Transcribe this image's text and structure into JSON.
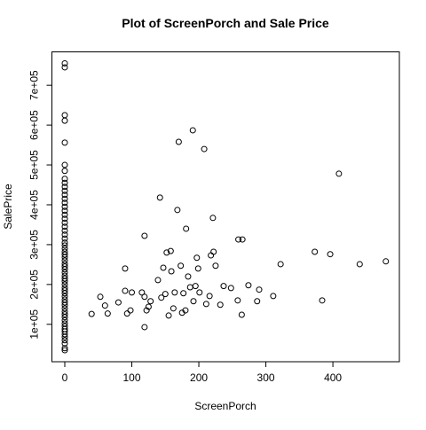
{
  "chart_data": {
    "type": "scatter",
    "title": "Plot of ScreenPorch and Sale Price",
    "x_label": "ScreenPorch",
    "y_label": "SalePrice",
    "xlim": [
      -19.2,
      499.2
    ],
    "ylim": [
      6096,
      783804
    ],
    "xticks": [
      0,
      100,
      200,
      300,
      400
    ],
    "yticks": [
      {
        "value": 100000,
        "label": "1e+05"
      },
      {
        "value": 200000,
        "label": "2e+05"
      },
      {
        "value": 300000,
        "label": "3e+05"
      },
      {
        "value": 400000,
        "label": "4e+05"
      },
      {
        "value": 500000,
        "label": "5e+05"
      },
      {
        "value": 600000,
        "label": "6e+05"
      },
      {
        "value": 700000,
        "label": "7e+05"
      }
    ],
    "color": "#000000",
    "x": [
      0,
      0,
      0,
      0,
      0,
      0,
      0,
      0,
      0,
      0,
      0,
      0,
      0,
      0,
      0,
      0,
      0,
      0,
      0,
      0,
      0,
      0,
      0,
      0,
      0,
      0,
      0,
      0,
      0,
      0,
      0,
      0,
      0,
      0,
      0,
      0,
      0,
      0,
      0,
      0,
      0,
      0,
      0,
      0,
      0,
      0,
      0,
      0,
      0,
      0,
      0,
      0,
      0,
      0,
      0,
      0,
      0,
      0,
      0,
      0,
      40,
      53,
      60,
      64,
      80,
      90,
      90,
      93,
      98,
      100,
      115,
      119,
      119,
      119,
      122,
      125,
      128,
      139,
      142,
      144,
      147,
      150,
      152,
      155,
      158,
      159,
      162,
      164,
      168,
      170,
      173,
      175,
      177,
      181,
      180,
      184,
      187,
      191,
      192,
      195,
      197,
      199,
      201,
      208,
      211,
      216,
      218,
      221,
      222,
      225,
      232,
      237,
      248,
      258,
      259,
      265,
      264,
      274,
      287,
      290,
      311,
      322,
      373,
      384,
      396,
      409,
      440,
      479
    ],
    "values": [
      34900,
      40000,
      52000,
      60000,
      68000,
      75000,
      82000,
      88000,
      95000,
      102000,
      110000,
      118000,
      125000,
      132000,
      140000,
      148000,
      155000,
      162000,
      170000,
      178000,
      185000,
      192000,
      200000,
      208000,
      215000,
      222000,
      230000,
      238000,
      245000,
      252000,
      260000,
      268000,
      275000,
      282000,
      290000,
      298000,
      305000,
      315000,
      325000,
      335000,
      345000,
      355000,
      365000,
      375000,
      385000,
      395000,
      405000,
      415000,
      425000,
      435000,
      445000,
      455000,
      465000,
      485000,
      500000,
      556000,
      611000,
      625000,
      745000,
      755000,
      126000,
      169000,
      147000,
      127000,
      155000,
      240000,
      184000,
      127000,
      135000,
      180000,
      180000,
      169000,
      322000,
      93000,
      135000,
      144000,
      158000,
      211000,
      418000,
      167000,
      242000,
      176000,
      280000,
      122000,
      284000,
      233000,
      140000,
      180000,
      387000,
      558000,
      247000,
      129000,
      178000,
      340000,
      135000,
      220000,
      193000,
      587000,
      158000,
      196000,
      267000,
      240000,
      180000,
      540000,
      151000,
      171000,
      273000,
      367000,
      282000,
      247000,
      149000,
      196000,
      191000,
      160000,
      313000,
      313000,
      124000,
      198000,
      158000,
      187000,
      171000,
      251000,
      282000,
      160000,
      276000,
      478000,
      251000,
      258000
    ]
  }
}
